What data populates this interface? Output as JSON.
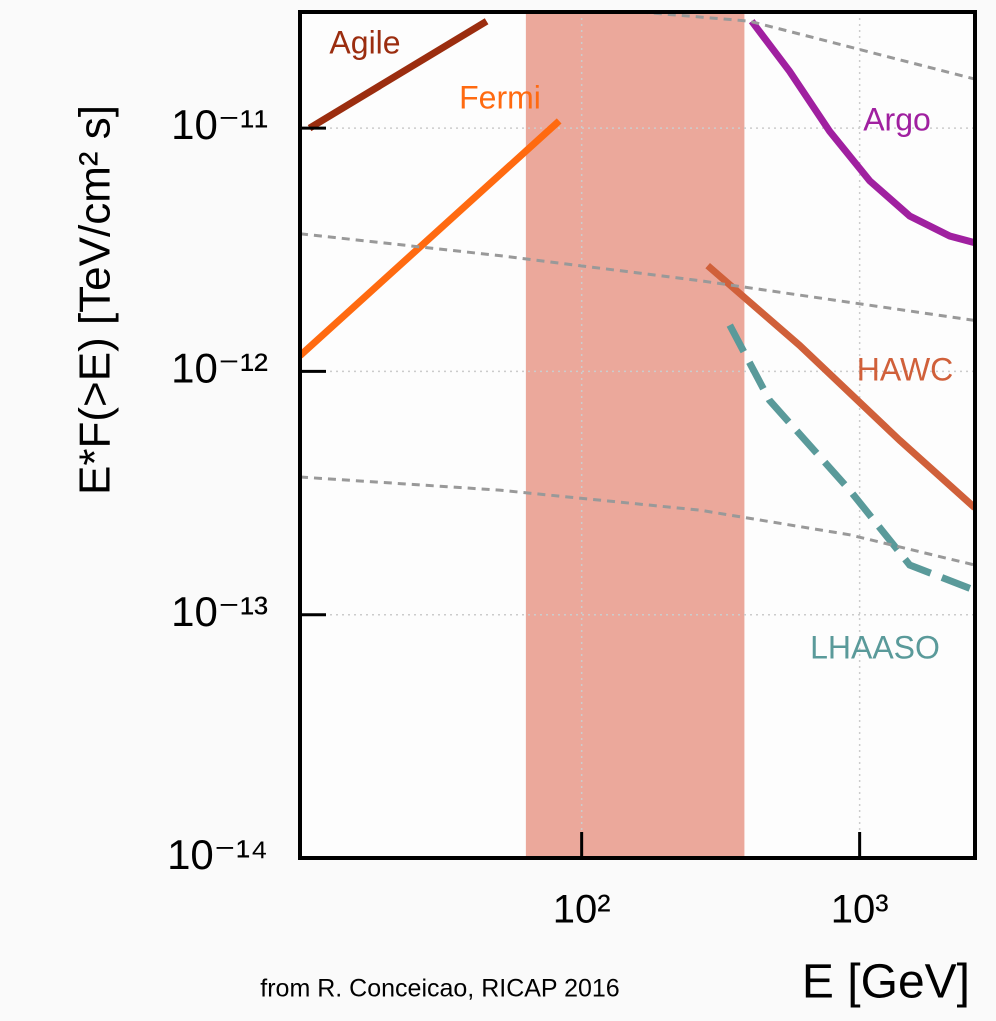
{
  "chart_data": {
    "type": "line",
    "ylabel": "E*F(>E) [TeV/cm² s]",
    "xlabel": "E [GeV]",
    "annotation": "from R. Conceicao, RICAP 2016",
    "xscale": "log",
    "yscale": "log",
    "grid": true,
    "xlim": [
      9.7,
      2600
    ],
    "ylim": [
      1e-14,
      3e-11
    ],
    "xticks": [
      {
        "value": 100,
        "label": "10²"
      },
      {
        "value": 1000,
        "label": "10³"
      }
    ],
    "yticks": [
      {
        "value": 1e-14,
        "label": "10⁻¹⁴"
      },
      {
        "value": 1e-13,
        "label": "10⁻¹³"
      },
      {
        "value": 1e-12,
        "label": "10⁻¹²"
      },
      {
        "value": 1e-11,
        "label": "10⁻¹¹"
      }
    ],
    "band": {
      "x": [
        63,
        385
      ],
      "color": "#eba89b"
    },
    "series": [
      {
        "name": "Agile",
        "color": "#9b2d0f",
        "x": [
          10.5,
          45.5
        ],
        "values": [
          1e-11,
          2.75e-11
        ]
      },
      {
        "name": "Fermi",
        "color": "#ff6a10",
        "x": [
          9.7,
          83
        ],
        "values": [
          1.16e-12,
          1.07e-11
        ]
      },
      {
        "name": "Argo",
        "color": "#a020a0",
        "x": [
          409,
          560,
          780,
          1087,
          1514,
          2110,
          2595
        ],
        "values": [
          2.75e-11,
          1.71e-11,
          9.7e-12,
          6.07e-12,
          4.35e-12,
          3.6e-12,
          3.38e-12
        ]
      },
      {
        "name": "HAWC",
        "color": "#d0603a",
        "x": [
          284,
          608,
          1393,
          2595
        ],
        "values": [
          2.72e-12,
          1.28e-12,
          5.21e-13,
          2.75e-13
        ]
      },
      {
        "name": "LHAASO",
        "color": "#5a9a9a",
        "dashed": true,
        "x": [
          341,
          474,
          921,
          1514,
          2595
        ],
        "values": [
          1.55e-12,
          7.6e-13,
          3.25e-13,
          1.6e-13,
          1.26e-13
        ]
      },
      {
        "color": "#999999",
        "dashed": true,
        "thin": true,
        "x": [
          162,
          402,
          2595
        ],
        "values": [
          3e-11,
          2.75e-11,
          1.59e-11
        ]
      },
      {
        "color": "#999999",
        "dashed": true,
        "thin": true,
        "x": [
          9.7,
          50.7,
          266,
          2595
        ],
        "values": [
          3.68e-12,
          2.99e-12,
          2.36e-12,
          1.62e-12
        ]
      },
      {
        "color": "#999999",
        "dashed": true,
        "thin": true,
        "x": [
          9.7,
          50.7,
          266,
          921,
          2595
        ],
        "values": [
          3.68e-13,
          3.25e-13,
          2.69e-13,
          2.13e-13,
          1.6e-13
        ]
      }
    ]
  }
}
